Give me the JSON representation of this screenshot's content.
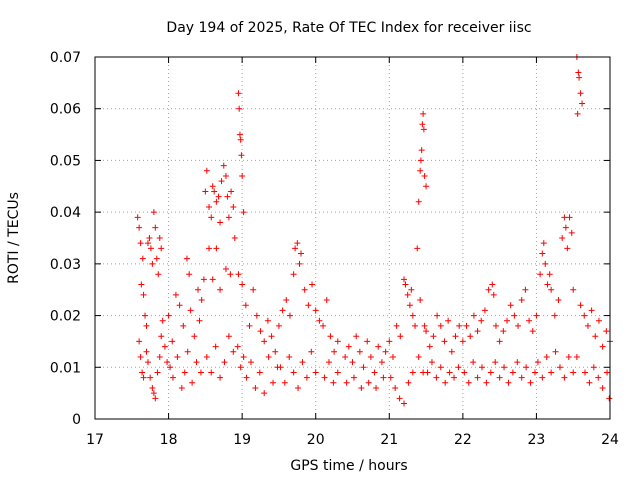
{
  "chart_data": {
    "type": "scatter",
    "title": "Day 194 of 2025, Rate Of TEC Index for receiver iisc",
    "xlabel": "GPS time / hours",
    "ylabel": "ROTI / TECUs",
    "xlim": [
      17,
      24
    ],
    "ylim": [
      0,
      0.07
    ],
    "x_ticks": [
      17,
      18,
      19,
      20,
      21,
      22,
      23,
      24
    ],
    "x_tick_labels": [
      "17",
      "18",
      "19",
      "20",
      "21",
      "22",
      "23",
      "24"
    ],
    "y_ticks": [
      0,
      0.01,
      0.02,
      0.03,
      0.04,
      0.05,
      0.06,
      0.07
    ],
    "y_tick_labels": [
      "0",
      "0.01",
      "0.02",
      "0.03",
      "0.04",
      "0.05",
      "0.06",
      "0.07"
    ],
    "grid": true,
    "marker": "+",
    "point_color": "#ff0000",
    "series": [
      {
        "name": "ROTI",
        "points": [
          [
            17.58,
            0.039
          ],
          [
            17.6,
            0.037
          ],
          [
            17.62,
            0.034
          ],
          [
            17.63,
            0.026
          ],
          [
            17.65,
            0.031
          ],
          [
            17.66,
            0.024
          ],
          [
            17.68,
            0.02
          ],
          [
            17.7,
            0.018
          ],
          [
            17.72,
            0.034
          ],
          [
            17.74,
            0.035
          ],
          [
            17.76,
            0.033
          ],
          [
            17.78,
            0.03
          ],
          [
            17.8,
            0.04
          ],
          [
            17.82,
            0.037
          ],
          [
            17.84,
            0.031
          ],
          [
            17.86,
            0.028
          ],
          [
            17.88,
            0.035
          ],
          [
            17.9,
            0.033
          ],
          [
            17.6,
            0.015
          ],
          [
            17.62,
            0.012
          ],
          [
            17.64,
            0.009
          ],
          [
            17.66,
            0.008
          ],
          [
            17.7,
            0.013
          ],
          [
            17.72,
            0.011
          ],
          [
            17.75,
            0.008
          ],
          [
            17.78,
            0.006
          ],
          [
            17.8,
            0.005
          ],
          [
            17.82,
            0.004
          ],
          [
            17.85,
            0.009
          ],
          [
            17.88,
            0.012
          ],
          [
            17.9,
            0.016
          ],
          [
            17.92,
            0.019
          ],
          [
            17.95,
            0.014
          ],
          [
            17.98,
            0.011
          ],
          [
            18.0,
            0.02
          ],
          [
            18.05,
            0.015
          ],
          [
            18.1,
            0.024
          ],
          [
            18.15,
            0.022
          ],
          [
            18.2,
            0.018
          ],
          [
            18.25,
            0.031
          ],
          [
            18.28,
            0.028
          ],
          [
            18.3,
            0.021
          ],
          [
            18.35,
            0.016
          ],
          [
            18.4,
            0.025
          ],
          [
            18.42,
            0.019
          ],
          [
            18.45,
            0.023
          ],
          [
            18.48,
            0.027
          ],
          [
            18.02,
            0.01
          ],
          [
            18.06,
            0.008
          ],
          [
            18.12,
            0.012
          ],
          [
            18.18,
            0.006
          ],
          [
            18.22,
            0.009
          ],
          [
            18.26,
            0.013
          ],
          [
            18.32,
            0.007
          ],
          [
            18.38,
            0.011
          ],
          [
            18.44,
            0.009
          ],
          [
            18.5,
            0.044
          ],
          [
            18.52,
            0.048
          ],
          [
            18.55,
            0.041
          ],
          [
            18.58,
            0.039
          ],
          [
            18.6,
            0.045
          ],
          [
            18.62,
            0.044
          ],
          [
            18.65,
            0.042
          ],
          [
            18.68,
            0.043
          ],
          [
            18.7,
            0.038
          ],
          [
            18.72,
            0.046
          ],
          [
            18.75,
            0.049
          ],
          [
            18.78,
            0.047
          ],
          [
            18.8,
            0.043
          ],
          [
            18.82,
            0.039
          ],
          [
            18.85,
            0.044
          ],
          [
            18.88,
            0.041
          ],
          [
            18.9,
            0.035
          ],
          [
            18.55,
            0.033
          ],
          [
            18.6,
            0.027
          ],
          [
            18.65,
            0.033
          ],
          [
            18.7,
            0.025
          ],
          [
            18.78,
            0.029
          ],
          [
            18.84,
            0.028
          ],
          [
            18.52,
            0.012
          ],
          [
            18.58,
            0.009
          ],
          [
            18.64,
            0.014
          ],
          [
            18.7,
            0.008
          ],
          [
            18.76,
            0.011
          ],
          [
            18.82,
            0.016
          ],
          [
            18.88,
            0.013
          ],
          [
            18.95,
            0.063
          ],
          [
            18.96,
            0.06
          ],
          [
            18.97,
            0.055
          ],
          [
            18.98,
            0.054
          ],
          [
            18.99,
            0.051
          ],
          [
            19.0,
            0.047
          ],
          [
            19.02,
            0.04
          ],
          [
            18.95,
            0.028
          ],
          [
            19.0,
            0.026
          ],
          [
            18.94,
            0.014
          ],
          [
            18.98,
            0.01
          ],
          [
            19.02,
            0.012
          ],
          [
            19.05,
            0.022
          ],
          [
            19.1,
            0.018
          ],
          [
            19.15,
            0.025
          ],
          [
            19.2,
            0.02
          ],
          [
            19.25,
            0.017
          ],
          [
            19.3,
            0.015
          ],
          [
            19.35,
            0.019
          ],
          [
            19.4,
            0.016
          ],
          [
            19.45,
            0.013
          ],
          [
            19.06,
            0.008
          ],
          [
            19.12,
            0.011
          ],
          [
            19.18,
            0.006
          ],
          [
            19.24,
            0.009
          ],
          [
            19.3,
            0.005
          ],
          [
            19.36,
            0.012
          ],
          [
            19.42,
            0.007
          ],
          [
            19.48,
            0.01
          ],
          [
            19.5,
            0.018
          ],
          [
            19.55,
            0.021
          ],
          [
            19.6,
            0.023
          ],
          [
            19.65,
            0.02
          ],
          [
            19.7,
            0.028
          ],
          [
            19.72,
            0.033
          ],
          [
            19.75,
            0.034
          ],
          [
            19.78,
            0.03
          ],
          [
            19.8,
            0.032
          ],
          [
            19.85,
            0.025
          ],
          [
            19.9,
            0.022
          ],
          [
            19.95,
            0.026
          ],
          [
            20.0,
            0.021
          ],
          [
            20.05,
            0.019
          ],
          [
            19.52,
            0.01
          ],
          [
            19.58,
            0.007
          ],
          [
            19.64,
            0.012
          ],
          [
            19.7,
            0.009
          ],
          [
            19.76,
            0.006
          ],
          [
            19.82,
            0.011
          ],
          [
            19.88,
            0.008
          ],
          [
            19.94,
            0.013
          ],
          [
            20.0,
            0.009
          ],
          [
            20.1,
            0.018
          ],
          [
            20.15,
            0.023
          ],
          [
            20.2,
            0.016
          ],
          [
            20.25,
            0.013
          ],
          [
            20.3,
            0.015
          ],
          [
            20.12,
            0.008
          ],
          [
            20.18,
            0.011
          ],
          [
            20.24,
            0.007
          ],
          [
            20.3,
            0.009
          ],
          [
            20.4,
            0.012
          ],
          [
            20.45,
            0.014
          ],
          [
            20.5,
            0.011
          ],
          [
            20.55,
            0.016
          ],
          [
            20.6,
            0.013
          ],
          [
            20.65,
            0.01
          ],
          [
            20.7,
            0.015
          ],
          [
            20.75,
            0.012
          ],
          [
            20.8,
            0.009
          ],
          [
            20.85,
            0.014
          ],
          [
            20.9,
            0.011
          ],
          [
            20.95,
            0.013
          ],
          [
            20.42,
            0.007
          ],
          [
            20.52,
            0.008
          ],
          [
            20.62,
            0.006
          ],
          [
            20.72,
            0.007
          ],
          [
            20.82,
            0.006
          ],
          [
            20.92,
            0.008
          ],
          [
            21.0,
            0.015
          ],
          [
            21.05,
            0.012
          ],
          [
            21.1,
            0.018
          ],
          [
            21.15,
            0.016
          ],
          [
            21.2,
            0.027
          ],
          [
            21.22,
            0.026
          ],
          [
            21.25,
            0.024
          ],
          [
            21.28,
            0.022
          ],
          [
            21.3,
            0.025
          ],
          [
            21.32,
            0.02
          ],
          [
            21.35,
            0.018
          ],
          [
            21.02,
            0.008
          ],
          [
            21.08,
            0.006
          ],
          [
            21.14,
            0.004
          ],
          [
            21.2,
            0.003
          ],
          [
            21.26,
            0.007
          ],
          [
            21.32,
            0.009
          ],
          [
            21.38,
            0.033
          ],
          [
            21.4,
            0.042
          ],
          [
            21.42,
            0.048
          ],
          [
            21.43,
            0.05
          ],
          [
            21.44,
            0.052
          ],
          [
            21.45,
            0.057
          ],
          [
            21.46,
            0.059
          ],
          [
            21.47,
            0.056
          ],
          [
            21.48,
            0.047
          ],
          [
            21.5,
            0.045
          ],
          [
            21.42,
            0.023
          ],
          [
            21.48,
            0.018
          ],
          [
            21.4,
            0.012
          ],
          [
            21.46,
            0.009
          ],
          [
            21.5,
            0.017
          ],
          [
            21.55,
            0.014
          ],
          [
            21.6,
            0.016
          ],
          [
            21.65,
            0.02
          ],
          [
            21.7,
            0.018
          ],
          [
            21.75,
            0.015
          ],
          [
            21.8,
            0.019
          ],
          [
            21.85,
            0.013
          ],
          [
            21.9,
            0.016
          ],
          [
            21.95,
            0.018
          ],
          [
            21.52,
            0.009
          ],
          [
            21.58,
            0.011
          ],
          [
            21.64,
            0.008
          ],
          [
            21.7,
            0.01
          ],
          [
            21.76,
            0.007
          ],
          [
            21.82,
            0.009
          ],
          [
            21.88,
            0.008
          ],
          [
            21.94,
            0.01
          ],
          [
            22.0,
            0.015
          ],
          [
            22.05,
            0.018
          ],
          [
            22.1,
            0.016
          ],
          [
            22.15,
            0.02
          ],
          [
            22.2,
            0.017
          ],
          [
            22.25,
            0.019
          ],
          [
            22.3,
            0.021
          ],
          [
            22.35,
            0.025
          ],
          [
            22.4,
            0.026
          ],
          [
            22.42,
            0.024
          ],
          [
            22.45,
            0.018
          ],
          [
            22.5,
            0.015
          ],
          [
            22.55,
            0.017
          ],
          [
            22.6,
            0.019
          ],
          [
            22.65,
            0.022
          ],
          [
            22.7,
            0.02
          ],
          [
            22.75,
            0.018
          ],
          [
            22.8,
            0.023
          ],
          [
            22.85,
            0.025
          ],
          [
            22.9,
            0.019
          ],
          [
            22.95,
            0.017
          ],
          [
            22.02,
            0.009
          ],
          [
            22.08,
            0.007
          ],
          [
            22.14,
            0.011
          ],
          [
            22.2,
            0.008
          ],
          [
            22.26,
            0.01
          ],
          [
            22.32,
            0.007
          ],
          [
            22.38,
            0.009
          ],
          [
            22.44,
            0.011
          ],
          [
            22.5,
            0.008
          ],
          [
            22.56,
            0.01
          ],
          [
            22.62,
            0.007
          ],
          [
            22.68,
            0.009
          ],
          [
            22.74,
            0.011
          ],
          [
            22.8,
            0.008
          ],
          [
            22.86,
            0.01
          ],
          [
            22.92,
            0.007
          ],
          [
            22.98,
            0.009
          ],
          [
            23.0,
            0.02
          ],
          [
            23.05,
            0.028
          ],
          [
            23.08,
            0.032
          ],
          [
            23.1,
            0.034
          ],
          [
            23.12,
            0.03
          ],
          [
            23.15,
            0.026
          ],
          [
            23.18,
            0.028
          ],
          [
            23.2,
            0.025
          ],
          [
            23.25,
            0.02
          ],
          [
            23.3,
            0.023
          ],
          [
            23.35,
            0.035
          ],
          [
            23.38,
            0.039
          ],
          [
            23.4,
            0.037
          ],
          [
            23.42,
            0.033
          ],
          [
            23.45,
            0.039
          ],
          [
            23.48,
            0.036
          ],
          [
            23.5,
            0.025
          ],
          [
            23.02,
            0.011
          ],
          [
            23.08,
            0.008
          ],
          [
            23.14,
            0.012
          ],
          [
            23.2,
            0.009
          ],
          [
            23.26,
            0.013
          ],
          [
            23.32,
            0.01
          ],
          [
            23.38,
            0.008
          ],
          [
            23.44,
            0.012
          ],
          [
            23.5,
            0.009
          ],
          [
            23.55,
            0.07
          ],
          [
            23.57,
            0.067
          ],
          [
            23.58,
            0.066
          ],
          [
            23.6,
            0.063
          ],
          [
            23.62,
            0.061
          ],
          [
            23.56,
            0.059
          ],
          [
            23.6,
            0.022
          ],
          [
            23.55,
            0.012
          ],
          [
            23.65,
            0.02
          ],
          [
            23.7,
            0.018
          ],
          [
            23.75,
            0.021
          ],
          [
            23.8,
            0.016
          ],
          [
            23.85,
            0.019
          ],
          [
            23.9,
            0.014
          ],
          [
            23.95,
            0.017
          ],
          [
            24.0,
            0.015
          ],
          [
            23.66,
            0.009
          ],
          [
            23.72,
            0.007
          ],
          [
            23.78,
            0.01
          ],
          [
            23.84,
            0.008
          ],
          [
            23.9,
            0.006
          ],
          [
            23.96,
            0.009
          ],
          [
            23.99,
            0.004
          ]
        ]
      }
    ]
  }
}
